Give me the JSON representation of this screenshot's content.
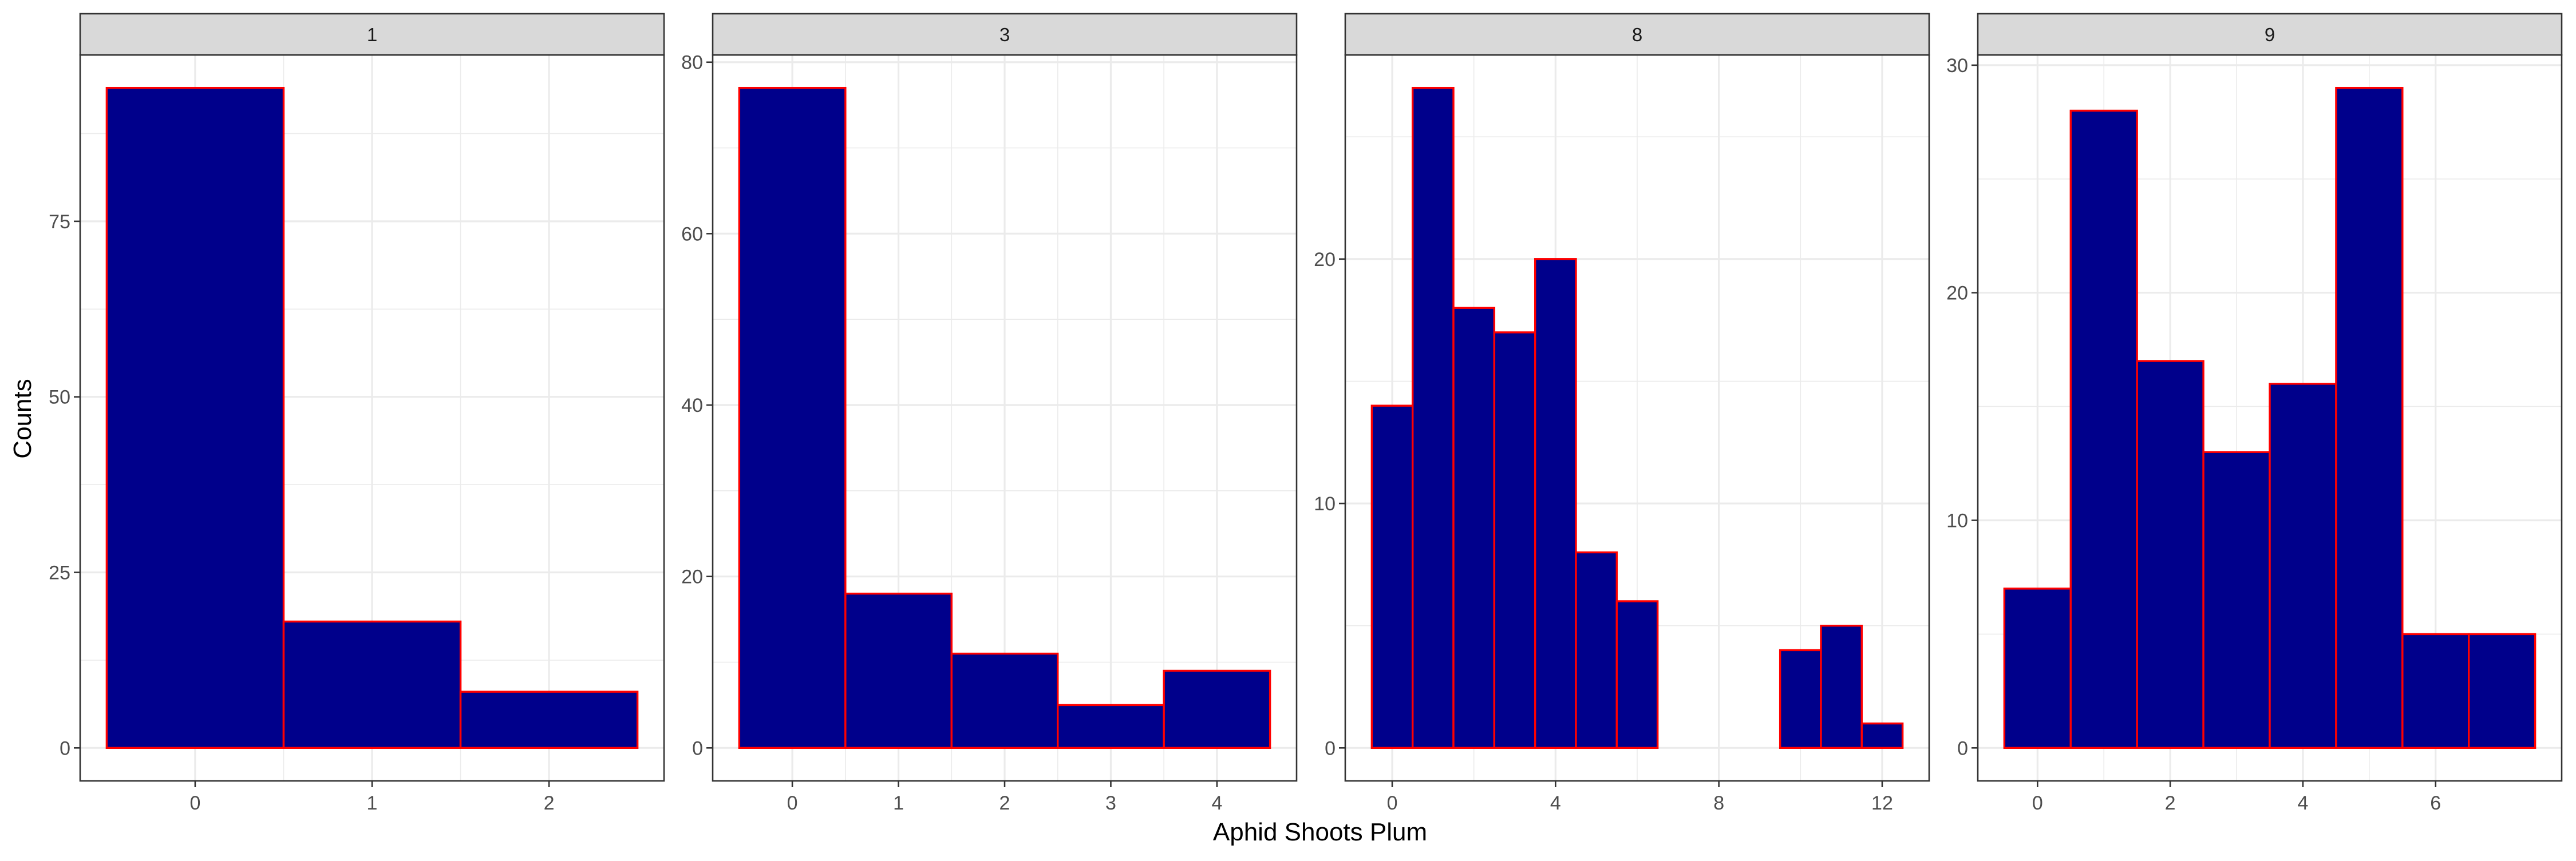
{
  "chart_data": {
    "type": "bar",
    "xlabel": "Aphid Shoots Plum",
    "ylabel": "Counts",
    "facet_grid": true,
    "colors": {
      "fill": "#00008B",
      "outline": "#FF0000",
      "strip_bg": "#D9D9D9",
      "grid": "#EBEBEB"
    },
    "panels": [
      {
        "strip": "1",
        "bins": [
          {
            "x": 0,
            "count": 94
          },
          {
            "x": 1,
            "count": 18
          },
          {
            "x": 2,
            "count": 8
          }
        ],
        "xlim": [
          -0.65,
          2.65
        ],
        "ylim": [
          -4.7,
          98.7
        ],
        "xticks": [
          {
            "v": 0,
            "label": "0"
          },
          {
            "v": 1,
            "label": "1"
          },
          {
            "v": 2,
            "label": "2"
          }
        ],
        "yticks": [
          {
            "v": 0,
            "label": "0"
          },
          {
            "v": 25,
            "label": "25"
          },
          {
            "v": 50,
            "label": "50"
          },
          {
            "v": 75,
            "label": "75"
          }
        ]
      },
      {
        "strip": "3",
        "bins": [
          {
            "x": 0,
            "count": 77
          },
          {
            "x": 1,
            "count": 18
          },
          {
            "x": 2,
            "count": 11
          },
          {
            "x": 3,
            "count": 5
          },
          {
            "x": 4,
            "count": 9
          }
        ],
        "xlim": [
          -0.75,
          4.75
        ],
        "ylim": [
          -3.85,
          80.85
        ],
        "xticks": [
          {
            "v": 0,
            "label": "0"
          },
          {
            "v": 1,
            "label": "1"
          },
          {
            "v": 2,
            "label": "2"
          },
          {
            "v": 3,
            "label": "3"
          },
          {
            "v": 4,
            "label": "4"
          }
        ],
        "yticks": [
          {
            "v": 0,
            "label": "0"
          },
          {
            "v": 20,
            "label": "20"
          },
          {
            "v": 40,
            "label": "40"
          },
          {
            "v": 60,
            "label": "60"
          },
          {
            "v": 80,
            "label": "80"
          }
        ]
      },
      {
        "strip": "8",
        "bins": [
          {
            "x": 0,
            "count": 14
          },
          {
            "x": 1,
            "count": 27
          },
          {
            "x": 2,
            "count": 18
          },
          {
            "x": 3,
            "count": 17
          },
          {
            "x": 4,
            "count": 20
          },
          {
            "x": 5,
            "count": 8
          },
          {
            "x": 6,
            "count": 6
          },
          {
            "x": 7,
            "count": 0
          },
          {
            "x": 8,
            "count": 0
          },
          {
            "x": 9,
            "count": 0
          },
          {
            "x": 10,
            "count": 4
          },
          {
            "x": 11,
            "count": 5
          },
          {
            "x": 12,
            "count": 1
          }
        ],
        "xlim": [
          -1.15,
          13.15
        ],
        "ylim": [
          -1.35,
          28.35
        ],
        "xticks": [
          {
            "v": 0,
            "label": "0"
          },
          {
            "v": 4,
            "label": "4"
          },
          {
            "v": 8,
            "label": "8"
          },
          {
            "v": 12,
            "label": "12"
          }
        ],
        "yticks": [
          {
            "v": 0,
            "label": "0"
          },
          {
            "v": 10,
            "label": "10"
          },
          {
            "v": 20,
            "label": "20"
          }
        ]
      },
      {
        "strip": "9",
        "bins": [
          {
            "x": 0,
            "count": 7
          },
          {
            "x": 1,
            "count": 28
          },
          {
            "x": 2,
            "count": 17
          },
          {
            "x": 3,
            "count": 13
          },
          {
            "x": 4,
            "count": 16
          },
          {
            "x": 5,
            "count": 29
          },
          {
            "x": 6,
            "count": 5
          },
          {
            "x": 7,
            "count": 5
          }
        ],
        "xlim": [
          -0.9,
          7.9
        ],
        "ylim": [
          -1.45,
          30.45
        ],
        "xticks": [
          {
            "v": 0,
            "label": "0"
          },
          {
            "v": 2,
            "label": "2"
          },
          {
            "v": 4,
            "label": "4"
          },
          {
            "v": 6,
            "label": "6"
          }
        ],
        "yticks": [
          {
            "v": 0,
            "label": "0"
          },
          {
            "v": 10,
            "label": "10"
          },
          {
            "v": 20,
            "label": "20"
          },
          {
            "v": 30,
            "label": "30"
          }
        ]
      }
    ]
  }
}
